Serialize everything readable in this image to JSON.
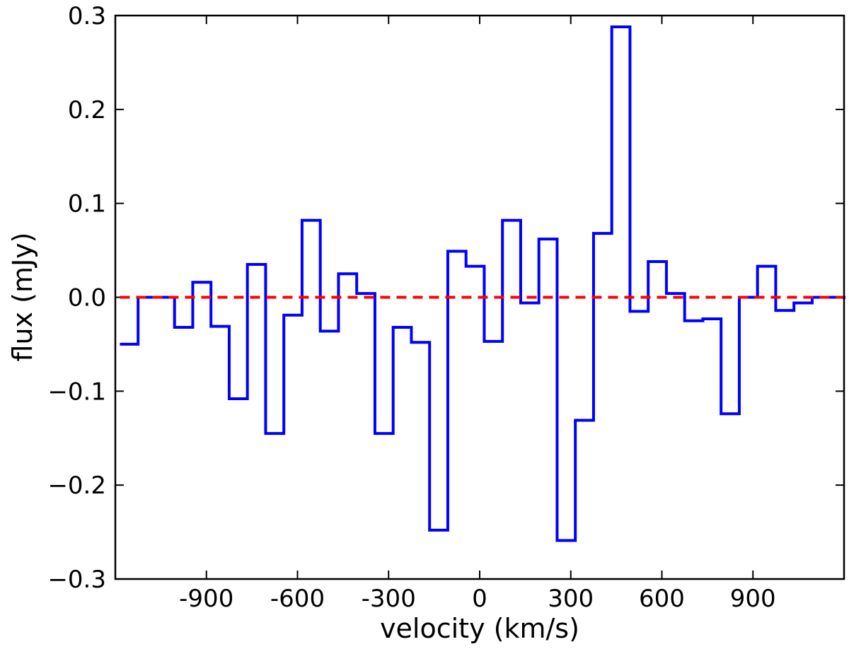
{
  "chart_data": {
    "type": "line",
    "step": true,
    "xlabel": "velocity (km/s)",
    "ylabel": "flux (mJy)",
    "xlim": [
      -1200,
      1200
    ],
    "ylim": [
      -0.3,
      0.3
    ],
    "x_ticks": [
      -900,
      -600,
      -300,
      0,
      300,
      600,
      900
    ],
    "x_tick_labels": [
      "-900",
      "-600",
      "-300",
      "0",
      "300",
      "600",
      "900"
    ],
    "y_ticks": [
      0.3,
      0.2,
      0.1,
      0.0,
      -0.1,
      -0.2,
      -0.3
    ],
    "y_tick_labels": [
      "0.3",
      "0.2",
      "0.1",
      "0.0",
      "−0.1",
      "−0.2",
      "−0.3"
    ],
    "grid": false,
    "series": [
      {
        "color": "#0000ff",
        "bin_width": 60,
        "bin_edges_start": -1185,
        "values": [
          -0.05,
          0.0,
          0.0,
          -0.032,
          0.016,
          -0.031,
          -0.108,
          0.035,
          -0.145,
          -0.019,
          0.082,
          -0.036,
          0.025,
          0.004,
          -0.145,
          -0.032,
          -0.048,
          -0.248,
          0.049,
          0.033,
          -0.047,
          0.082,
          -0.006,
          0.062,
          -0.259,
          -0.131,
          0.068,
          0.288,
          -0.015,
          0.038,
          0.004,
          -0.025,
          -0.023,
          -0.124,
          0.0,
          0.033,
          -0.014,
          -0.006,
          0.0,
          0.0,
          -0.002
        ]
      },
      {
        "color": "#ff0000",
        "style": "dashed",
        "x": [
          -1185,
          1200
        ],
        "values": [
          0.0,
          0.0
        ]
      }
    ]
  }
}
